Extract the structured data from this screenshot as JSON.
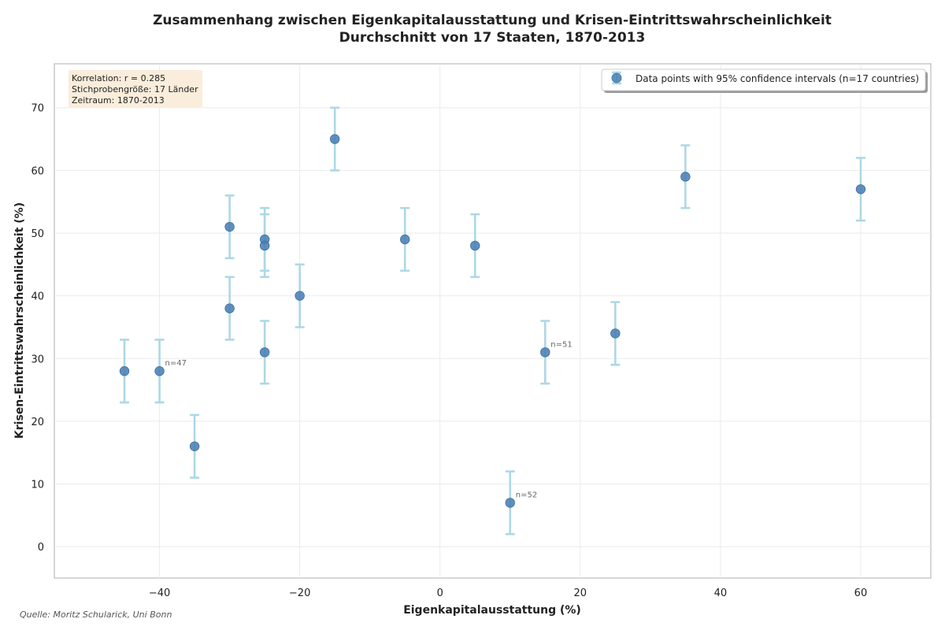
{
  "chart_data": {
    "type": "scatter",
    "title": "Zusammenhang zwischen Eigenkapitalausstattung und Krisen-Eintrittswahrscheinlichkeit",
    "subtitle": "Durchschnitt von 17 Staaten, 1870-2013",
    "xlabel": "Eigenkapitalausstattung (%)",
    "ylabel": "Krisen-Eintrittswahrscheinlichkeit (%)",
    "xlim": [
      -55,
      70
    ],
    "ylim": [
      -5,
      77
    ],
    "xticks": [
      -40,
      -20,
      0,
      20,
      40,
      60
    ],
    "yticks": [
      0,
      10,
      20,
      30,
      40,
      50,
      60,
      70
    ],
    "tick_labels_x": [
      "−40",
      "−20",
      "0",
      "20",
      "40",
      "60"
    ],
    "tick_labels_y": [
      "0",
      "10",
      "20",
      "30",
      "40",
      "50",
      "60",
      "70"
    ],
    "grid": true,
    "legend_position": "top-right",
    "series": [
      {
        "name": "Data points with 95% confidence intervals (n=17 countries)",
        "points": [
          {
            "x": -45,
            "y": 28,
            "lo": 23,
            "hi": 33
          },
          {
            "x": -40,
            "y": 28,
            "lo": 23,
            "hi": 33
          },
          {
            "x": -35,
            "y": 16,
            "lo": 11,
            "hi": 21
          },
          {
            "x": -30,
            "y": 51,
            "lo": 46,
            "hi": 56
          },
          {
            "x": -30,
            "y": 38,
            "lo": 33,
            "hi": 43
          },
          {
            "x": -25,
            "y": 49,
            "lo": 44,
            "hi": 54
          },
          {
            "x": -25,
            "y": 48,
            "lo": 43,
            "hi": 53
          },
          {
            "x": -25,
            "y": 31,
            "lo": 26,
            "hi": 36
          },
          {
            "x": -20,
            "y": 40,
            "lo": 35,
            "hi": 45
          },
          {
            "x": -15,
            "y": 65,
            "lo": 60,
            "hi": 70
          },
          {
            "x": -5,
            "y": 49,
            "lo": 44,
            "hi": 54
          },
          {
            "x": 5,
            "y": 48,
            "lo": 43,
            "hi": 53
          },
          {
            "x": 10,
            "y": 7,
            "lo": 2,
            "hi": 12
          },
          {
            "x": 15,
            "y": 31,
            "lo": 26,
            "hi": 36
          },
          {
            "x": 25,
            "y": 34,
            "lo": 29,
            "hi": 39
          },
          {
            "x": 35,
            "y": 59,
            "lo": 54,
            "hi": 64
          },
          {
            "x": 60,
            "y": 57,
            "lo": 52,
            "hi": 62
          }
        ]
      }
    ],
    "annotations": [
      {
        "x": -40,
        "y": 28,
        "text": "n=47"
      },
      {
        "x": 15,
        "y": 31,
        "text": "n=51"
      },
      {
        "x": 10,
        "y": 7,
        "text": "n=52"
      }
    ],
    "stats_box": [
      "Korrelation: r = 0.285",
      "Stichprobengröße: 17 Länder",
      "Zeitraum: 1870-2013"
    ],
    "source": "Quelle: Moritz Schularick, Uni Bonn",
    "colors": {
      "point": "#4a7fb5",
      "errorbar": "#add8e6",
      "stats_box_bg": "#faebd7"
    }
  }
}
